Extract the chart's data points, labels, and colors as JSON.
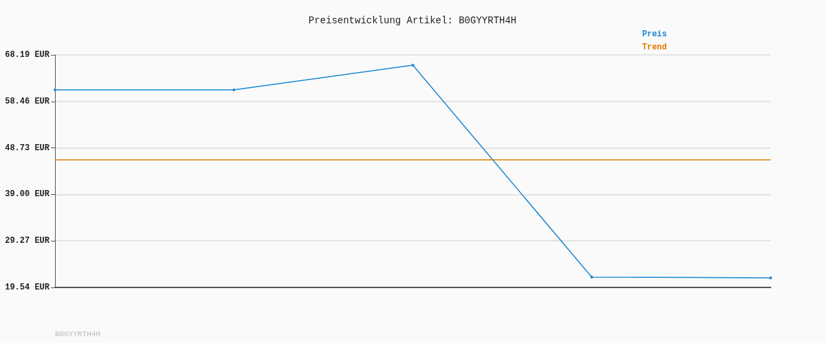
{
  "chart_data": {
    "type": "line",
    "title": "Preisentwicklung Artikel: B0GYYRTH4H",
    "categories": [
      null,
      null,
      null,
      null,
      null
    ],
    "series": [
      {
        "name": "Preis",
        "color": "#1a87d4",
        "values": [
          60.87,
          60.87,
          66.04,
          21.69,
          21.55
        ]
      },
      {
        "name": "Trend",
        "color": "#e07b00",
        "values": [
          46.23,
          46.23,
          46.23,
          46.23,
          46.23
        ],
        "marker": "none"
      }
    ],
    "ylim": [
      19.54,
      68.19
    ],
    "yticks": [
      {
        "value": 19.54,
        "label": "19.54 EUR"
      },
      {
        "value": 29.27,
        "label": "29.27 EUR"
      },
      {
        "value": 39.0,
        "label": "39.00 EUR"
      },
      {
        "value": 48.73,
        "label": "48.73 EUR"
      },
      {
        "value": 58.46,
        "label": "58.46 EUR"
      },
      {
        "value": 68.19,
        "label": "68.19 EUR"
      }
    ],
    "grid": "y",
    "legend": "top right",
    "marker": "diamond",
    "tick_labels": "y",
    "annotations": [
      "B0GYYRTH4H"
    ]
  }
}
